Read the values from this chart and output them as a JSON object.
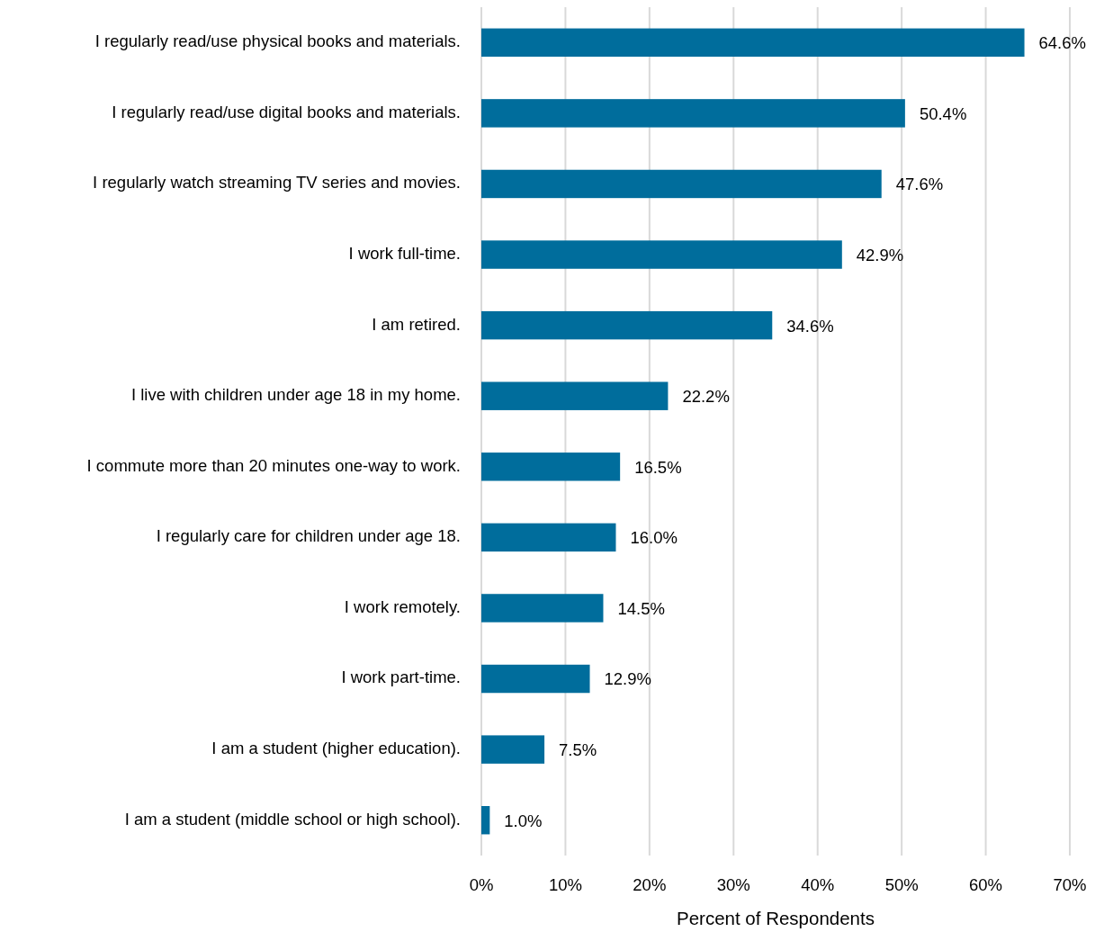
{
  "chart_data": {
    "type": "bar",
    "orientation": "horizontal",
    "xlabel": "Percent of Respondents",
    "categories": [
      "I regularly read/use physical books and materials.",
      "I regularly read/use digital books and materials.",
      "I regularly watch streaming TV series and movies.",
      "I work full-time.",
      "I am retired.",
      "I live with children under age 18 in my home.",
      "I commute more than 20 minutes one-way to work.",
      "I regularly care for children under age 18.",
      "I work remotely.",
      "I work part-time.",
      "I am a student (higher education).",
      "I am a student (middle school or high school)."
    ],
    "values": [
      64.6,
      50.4,
      47.6,
      42.9,
      34.6,
      22.2,
      16.5,
      16.0,
      14.5,
      12.9,
      7.5,
      1.0
    ],
    "value_labels": [
      "64.6%",
      "50.4%",
      "47.6%",
      "42.9%",
      "34.6%",
      "22.2%",
      "16.5%",
      "16.0%",
      "14.5%",
      "12.9%",
      "7.5%",
      "1.0%"
    ],
    "color": "#006d9c",
    "xlim": [
      0,
      70
    ],
    "xticks": [
      {
        "value": 0,
        "label": "0%"
      },
      {
        "value": 10,
        "label": "10%"
      },
      {
        "value": 20,
        "label": "20%"
      },
      {
        "value": 30,
        "label": "30%"
      },
      {
        "value": 40,
        "label": "40%"
      },
      {
        "value": 50,
        "label": "50%"
      },
      {
        "value": 60,
        "label": "60%"
      },
      {
        "value": 70,
        "label": "70%"
      }
    ],
    "grid": "x"
  }
}
